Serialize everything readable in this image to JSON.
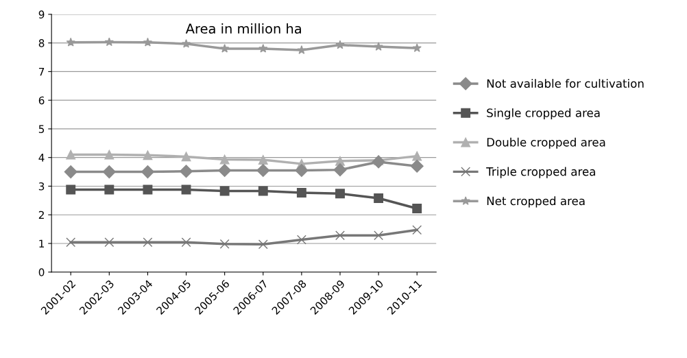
{
  "chart_data": {
    "type": "line",
    "title": "Area in million ha",
    "categories": [
      "2001-02",
      "2002-03",
      "2003-04",
      "2004-05",
      "2005-06",
      "2006-07",
      "2007-08",
      "2008-09",
      "2009-10",
      "2010-11"
    ],
    "series": [
      {
        "name": "Not available for cultivation",
        "color": "#8a8a8a",
        "marker": "diamond",
        "values": [
          3.5,
          3.5,
          3.5,
          3.52,
          3.55,
          3.55,
          3.55,
          3.57,
          3.85,
          3.7
        ]
      },
      {
        "name": "Single cropped area",
        "color": "#555555",
        "marker": "square",
        "values": [
          2.88,
          2.88,
          2.88,
          2.88,
          2.83,
          2.83,
          2.77,
          2.74,
          2.58,
          2.22
        ]
      },
      {
        "name": "Double cropped area",
        "color": "#b0b0b0",
        "marker": "triangle",
        "values": [
          4.1,
          4.1,
          4.08,
          4.03,
          3.93,
          3.92,
          3.78,
          3.88,
          3.9,
          4.05
        ]
      },
      {
        "name": "Triple cropped area",
        "color": "#777777",
        "marker": "cross",
        "values": [
          1.04,
          1.04,
          1.04,
          1.04,
          0.98,
          0.97,
          1.13,
          1.28,
          1.28,
          1.47
        ]
      },
      {
        "name": "Net cropped area",
        "color": "#999999",
        "marker": "star",
        "values": [
          8.02,
          8.03,
          8.02,
          7.97,
          7.8,
          7.8,
          7.75,
          7.93,
          7.87,
          7.82
        ]
      }
    ],
    "ylim": [
      0,
      9
    ],
    "yticks": [
      0,
      1,
      2,
      3,
      4,
      5,
      6,
      7,
      8,
      9
    ],
    "grid": "y",
    "legend": "right"
  }
}
